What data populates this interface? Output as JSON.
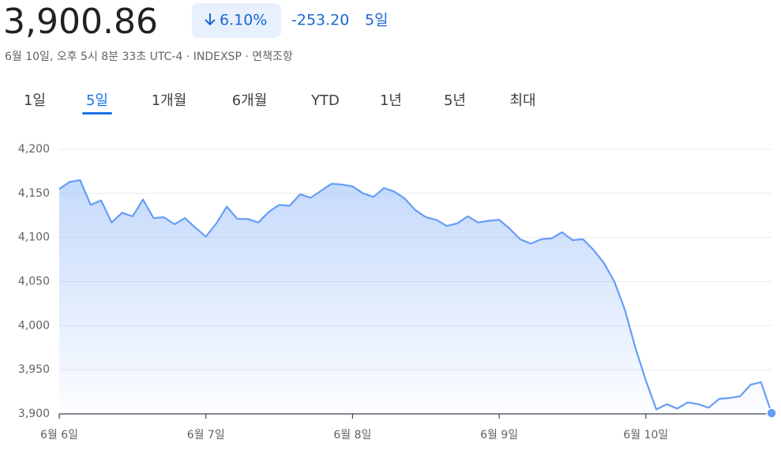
{
  "quote": {
    "price": "3,900.86",
    "change_percent": "6.10%",
    "change": "-253.20",
    "period": "5일",
    "timestamp": "6월 10일, 오후 5시 8분 33초 UTC-4",
    "exchange": "INDEXSP",
    "disclaimer": "면책조항"
  },
  "tabs": {
    "items": [
      "1일",
      "5일",
      "1개월",
      "6개월",
      "YTD",
      "1년",
      "5년",
      "최대"
    ],
    "selected": 1
  },
  "chart_data": {
    "type": "line",
    "area": true,
    "color": "#669df6",
    "categories": [
      "6월 6일",
      null,
      null,
      null,
      null,
      null,
      null,
      null,
      null,
      null,
      null,
      null,
      null,
      null,
      "6월 7일",
      null,
      null,
      null,
      null,
      null,
      null,
      null,
      null,
      null,
      null,
      null,
      null,
      null,
      "6월 8일",
      null,
      null,
      null,
      null,
      null,
      null,
      null,
      null,
      null,
      null,
      null,
      null,
      null,
      "6월 9일",
      null,
      null,
      null,
      null,
      null,
      null,
      null,
      null,
      null,
      null,
      null,
      null,
      null,
      "6월 10일",
      null,
      null,
      null,
      null,
      null,
      null,
      null,
      null,
      null,
      null,
      null,
      null
    ],
    "values": [
      4155,
      4163,
      4165,
      4137,
      4142,
      4117,
      4128,
      4124,
      4143,
      4122,
      4123,
      4115,
      4122,
      4111,
      4101,
      4116,
      4135,
      4121,
      4121,
      4117,
      4129,
      4137,
      4136,
      4149,
      4145,
      4153,
      4161,
      4160,
      4158,
      4150,
      4146,
      4156,
      4152,
      4144,
      4131,
      4123,
      4120,
      4113,
      4116,
      4124,
      4117,
      4119,
      4120,
      4110,
      4098,
      4093,
      4098,
      4099,
      4106,
      4097,
      4098,
      4086,
      4071,
      4050,
      4018,
      3975,
      3938,
      3905,
      3911,
      3906,
      3913,
      3911,
      3907,
      3917,
      3918,
      3920,
      3933,
      3936,
      3900.86
    ],
    "ylim": [
      3900,
      4200
    ],
    "yticks": [
      {
        "value": 3900,
        "label": "3,900"
      },
      {
        "value": 3950,
        "label": "3,950"
      },
      {
        "value": 4000,
        "label": "4,000"
      },
      {
        "value": 4050,
        "label": "4,050"
      },
      {
        "value": 4100,
        "label": "4,100"
      },
      {
        "value": 4150,
        "label": "4,150"
      },
      {
        "value": 4200,
        "label": "4,200"
      }
    ],
    "grid": true
  }
}
